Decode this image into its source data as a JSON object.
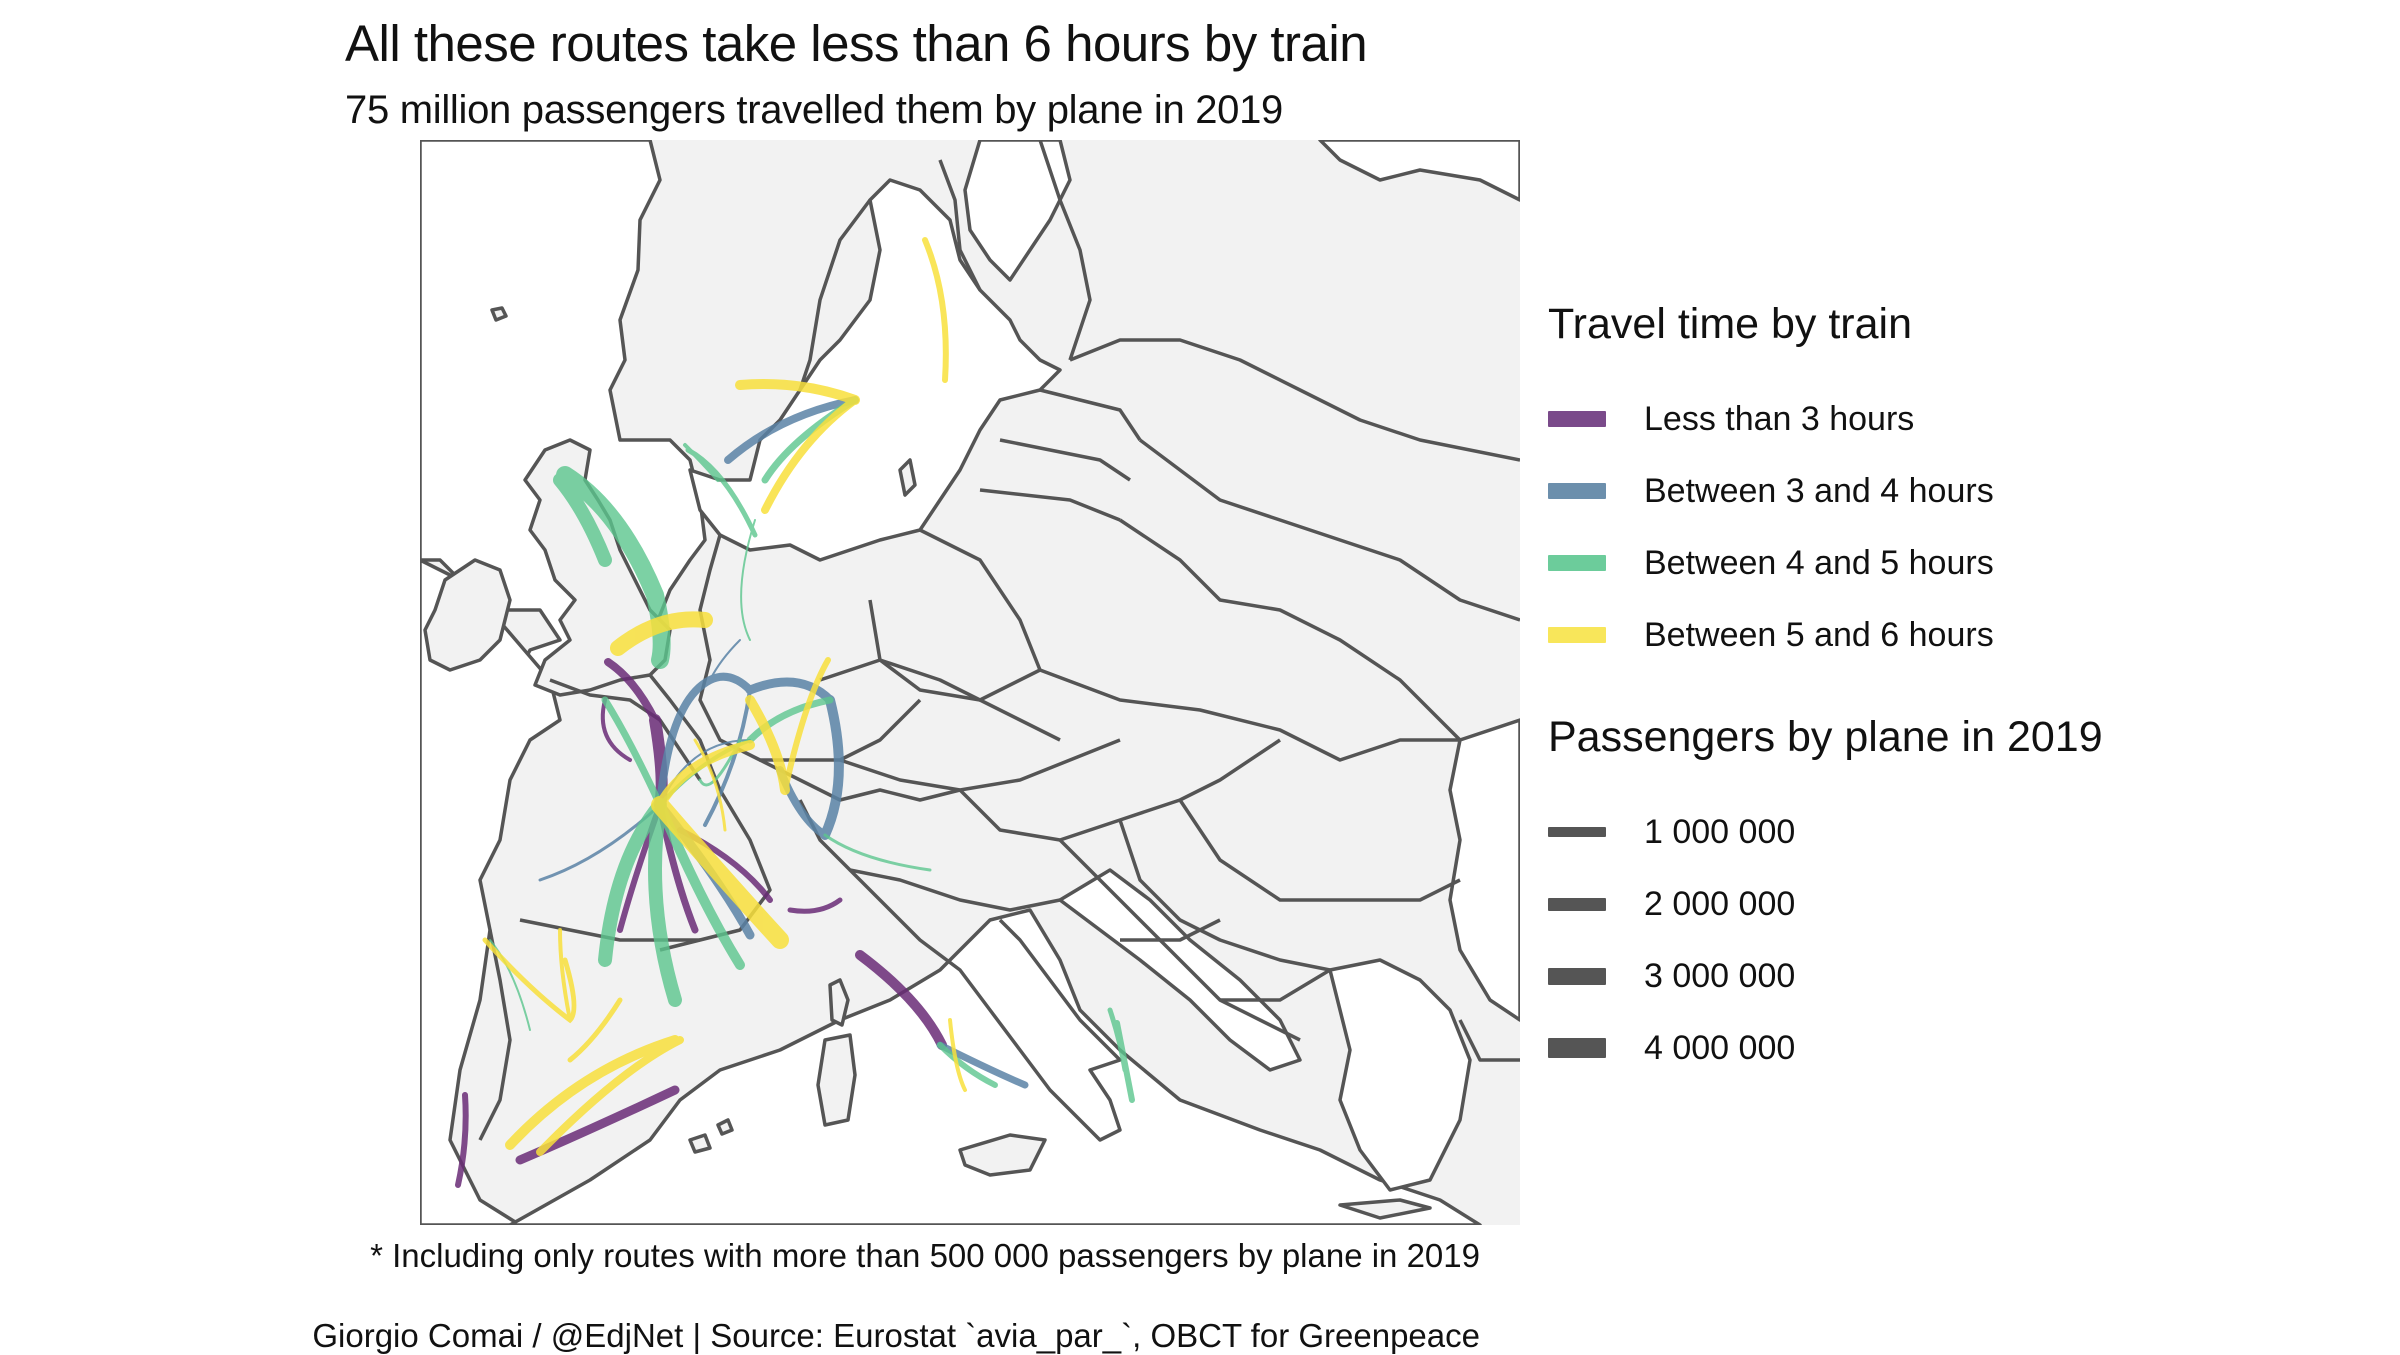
{
  "title": "All these routes take less than 6 hours by train",
  "subtitle": "75 million passengers travelled them by plane in 2019",
  "caption": "* Including only routes with more than 500 000 passengers by plane in 2019",
  "source": "Giorgio Comai / @EdjNet | Source: Eurostat `avia_par_`, OBCT for Greenpeace",
  "colors": {
    "land": "#f2f2f2",
    "border": "#555555",
    "lt3": "#6a2c77",
    "b34": "#5a83a6",
    "b45": "#5cc68e",
    "b56": "#f8e03c"
  },
  "legend": {
    "color_title": "Travel time by train",
    "color_items": [
      {
        "label": "Less than 3 hours",
        "color": "#7a4a8a"
      },
      {
        "label": "Between 3 and 4 hours",
        "color": "#6c8fac"
      },
      {
        "label": "Between 4 and 5 hours",
        "color": "#6ccc9b"
      },
      {
        "label": "Between 5 and 6 hours",
        "color": "#f8e65a"
      }
    ],
    "size_title": "Passengers by plane in 2019",
    "size_items": [
      {
        "label": "1 000 000",
        "value": 1000000
      },
      {
        "label": "2 000 000",
        "value": 2000000
      },
      {
        "label": "3 000 000",
        "value": 3000000
      },
      {
        "label": "4 000 000",
        "value": 4000000
      }
    ]
  }
}
